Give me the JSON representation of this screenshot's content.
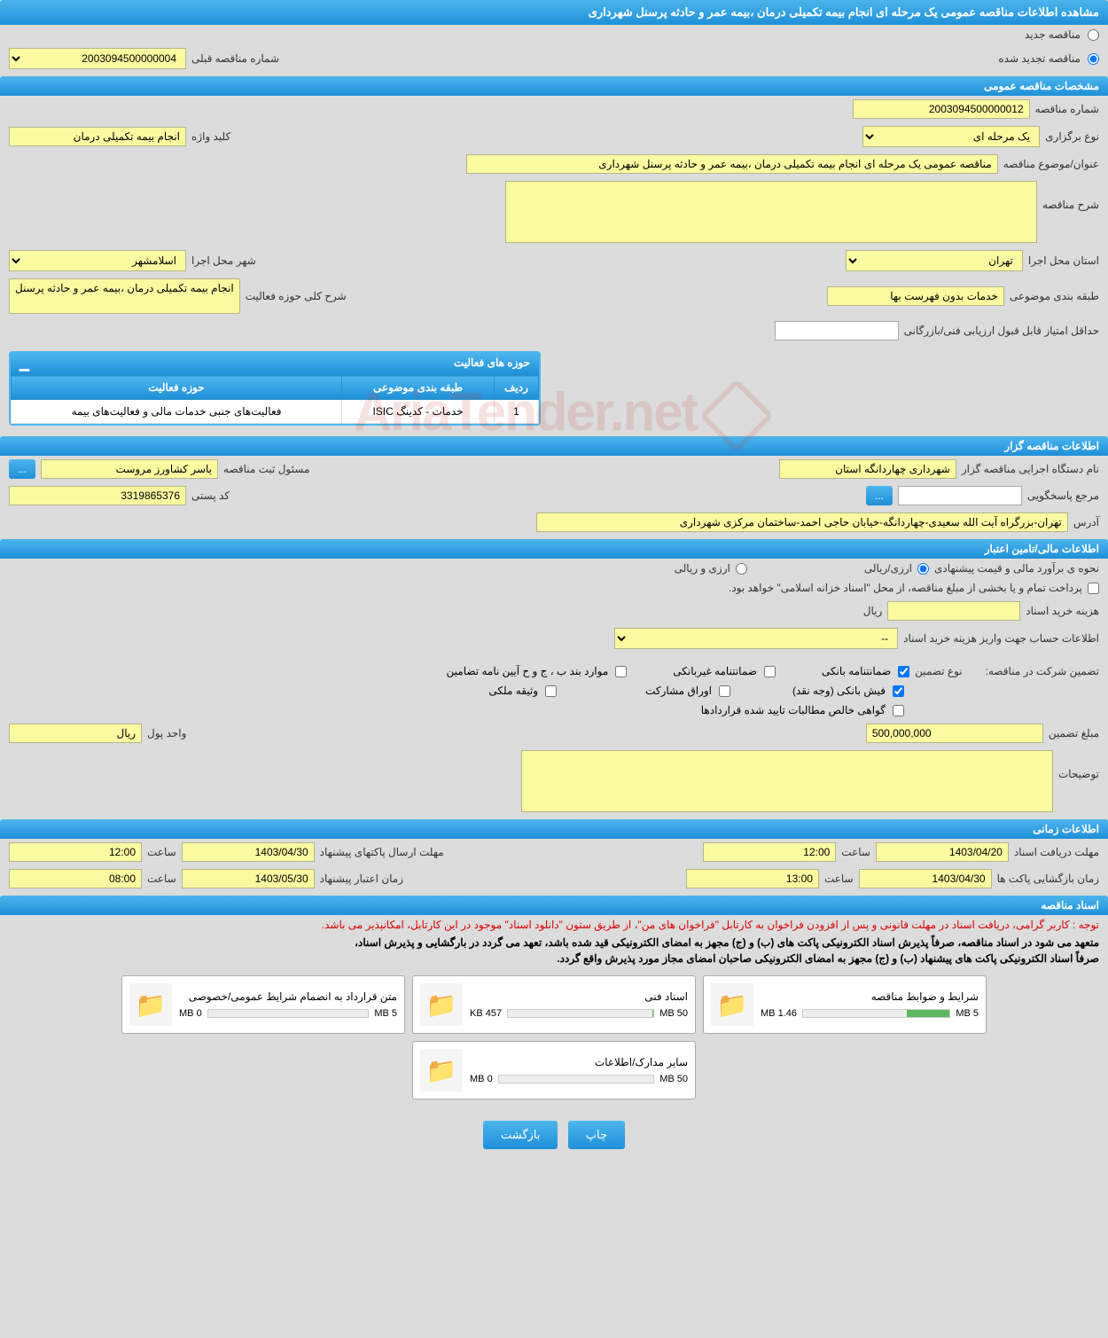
{
  "page_title": "مشاهده اطلاعات مناقصه عمومی یک مرحله ای انجام بیمه تکمیلی درمان ،بیمه عمر و حادثه پرسنل شهرداری",
  "tender_mode": {
    "new_label": "مناقصه جدید",
    "renewed_label": "مناقصه تجدید شده",
    "prev_number_label": "شماره مناقصه قبلی",
    "prev_number": "2003094500000004"
  },
  "sections": {
    "general": "مشخصات مناقصه عمومی",
    "tenderer": "اطلاعات مناقصه گزار",
    "financial": "اطلاعات مالی/تامین اعتبار",
    "timing": "اطلاعات زمانی",
    "documents": "اسناد مناقصه"
  },
  "general": {
    "number_label": "شماره مناقصه",
    "number": "2003094500000012",
    "type_label": "نوع برگزاری",
    "type": "یک مرحله ای",
    "keyword_label": "کلید واژه",
    "keyword": "انجام بیمه تکمیلی درمان",
    "title_label": "عنوان/موضوع مناقصه",
    "title": "مناقصه عمومی یک مرحله ای انجام بیمه تکمیلی درمان ،بیمه عمر و حادثه پرسنل شهرداری",
    "desc_label": "شرح مناقصه",
    "desc": "",
    "province_label": "استان محل اجرا",
    "province": "تهران",
    "city_label": "شهر محل اجرا",
    "city": "اسلامشهر",
    "category_label": "طبقه بندی موضوعی",
    "category": "خدمات بدون فهرست بها",
    "scope_label": "شرح کلی حوزه فعالیت",
    "scope": "انجام بیمه تکمیلی درمان ،بیمه عمر و حادثه پرسنل",
    "min_score_label": "حداقل امتیاز قابل قبول ارزیابی فنی/بازرگانی",
    "min_score": ""
  },
  "activity": {
    "title": "حوزه های فعالیت",
    "col_row": "ردیف",
    "col_category": "طبقه بندی موضوعی",
    "col_scope": "حوزه فعالیت",
    "row1_num": "1",
    "row1_cat": "خدمات - کدینگ ISIC",
    "row1_scope": "فعالیت‌های جنبی خدمات مالی و فعالیت‌های بیمه"
  },
  "tenderer": {
    "org_label": "نام دستگاه اجرایی مناقصه گزار",
    "org": "شهرداری چهاردانگه استان",
    "responsible_label": "مسئول ثبت مناقصه",
    "responsible": "یاسر کشاورز مروست",
    "more": "...",
    "contact_label": "مرجع پاسخگویی",
    "contact": "",
    "postal_label": "کد پستی",
    "postal": "3319865376",
    "address_label": "آدرس",
    "address": "تهران-بزرگراه آیت الله سعیدی-چهاردانگه-خیابان حاجی احمد-ساختمان مرکزی شهرداری"
  },
  "financial": {
    "estimate_label": "نحوه ی برآورد مالی و قیمت پیشنهادی",
    "currency_rial": "ارزی/ریالی",
    "currency_arz": "ارزی و ریالی",
    "payment_note": "پرداخت تمام و یا بخشی از مبلغ مناقصه، از محل \"اسناد خزانه اسلامی\" خواهد بود.",
    "doc_cost_label": "هزینه خرید اسناد",
    "doc_cost": "",
    "rial_unit": "ریال",
    "account_label": "اطلاعات حساب جهت واریز هزینه خرید اسناد",
    "account": "--",
    "guarantee_label": "تضمین شرکت در مناقصه:",
    "guarantee_type_label": "نوع تضمین",
    "chk_bank": "ضمانتنامه بانکی",
    "chk_nonbank": "ضمانتنامه غیربانکی",
    "chk_regs": "موارد بند ب ، ج و ح آیین نامه تضامین",
    "chk_cash": "فیش بانکی (وجه نقد)",
    "chk_bonds": "اوراق مشارکت",
    "chk_property": "وثیقه ملکی",
    "chk_demands": "گواهی خالص مطالبات تایید شده قراردادها",
    "amount_label": "مبلغ تضمین",
    "amount": "500,000,000",
    "unit_label": "واحد پول",
    "unit": "ریال",
    "notes_label": "توضیحات",
    "notes": ""
  },
  "timing": {
    "receive_label": "مهلت دریافت اسناد",
    "receive_date": "1403/04/20",
    "receive_time_label": "ساعت",
    "receive_time": "12:00",
    "submit_label": "مهلت ارسال پاکتهای پیشنهاد",
    "submit_date": "1403/04/30",
    "submit_time": "12:00",
    "open_label": "زمان بازگشایی پاکت ها",
    "open_date": "1403/04/30",
    "open_time": "13:00",
    "valid_label": "زمان اعتبار پیشنهاد",
    "valid_date": "1403/05/30",
    "valid_time": "08:00"
  },
  "documents": {
    "notice_red": "توجه : کاربر گرامی، دریافت اسناد در مهلت قانونی و پس از افزودن فراخوان به کارتابل \"فراخوان های من\"، از طریق ستون \"دانلود اسناد\" موجود در این کارتابل، امکانپذیر می باشد.",
    "notice1": "متعهد می شود در اسناد مناقصه، صرفاً پذیرش اسناد الکترونیکی پاکت های (ب) و (ج) مجهز به امضای الکترونیکی قید شده باشد، تعهد می گردد در بارگشایی و پذیرش اسناد،",
    "notice2": "صرفاً اسناد الکترونیکی پاکت های پیشنهاد (ب) و (ج) مجهز به امضای الکترونیکی صاحبان امضای مجاز مورد پذیرش واقع گردد.",
    "doc1_title": "شرایط و ضوابط مناقصه",
    "doc1_used": "1.46 MB",
    "doc1_total": "5 MB",
    "doc1_pct": 29,
    "doc2_title": "اسناد فنی",
    "doc2_used": "457 KB",
    "doc2_total": "50 MB",
    "doc2_pct": 1,
    "doc3_title": "متن قرارداد به انضمام شرایط عمومی/خصوصی",
    "doc3_used": "0 MB",
    "doc3_total": "5 MB",
    "doc3_pct": 0,
    "doc4_title": "سایر مدارک/اطلاعات",
    "doc4_used": "0 MB",
    "doc4_total": "50 MB",
    "doc4_pct": 0
  },
  "buttons": {
    "print": "چاپ",
    "back": "بازگشت"
  },
  "watermark": "AriaTender.net"
}
